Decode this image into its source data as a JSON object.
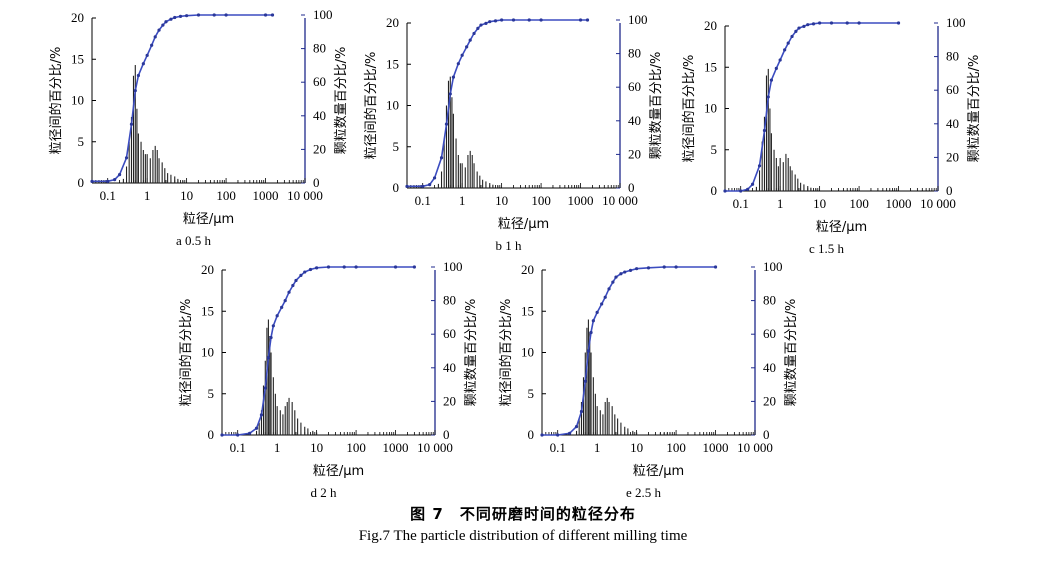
{
  "figure": {
    "caption_cn": "图 7　不同研磨时间的粒径分布",
    "caption_en": "Fig.7 The particle distribution of different milling time"
  },
  "chart_data": [
    {
      "type": "bar",
      "panel_label": "a  0.5 h",
      "xlabel": "粒径/μm",
      "ylabel": "粒径间的百分比/%",
      "ylabel_right": "颗粒数量百分比/%",
      "x_scale": "log",
      "xlim": [
        0.04,
        10000
      ],
      "x_ticks": [
        "0.1",
        "1",
        "10",
        "100",
        "1000",
        "10 000"
      ],
      "ylim": [
        0,
        20
      ],
      "y_ticks": [
        "0",
        "5",
        "10",
        "15",
        "20"
      ],
      "y2lim": [
        0,
        100
      ],
      "y2_ticks": [
        "0",
        "20",
        "40",
        "60",
        "80",
        "100"
      ],
      "series": [
        {
          "type": "bar",
          "x": [
            0.25,
            0.3,
            0.35,
            0.4,
            0.45,
            0.5,
            0.55,
            0.6,
            0.7,
            0.8,
            0.9,
            1.0,
            1.2,
            1.4,
            1.6,
            1.8,
            2.0,
            2.4,
            2.8,
            3.3,
            4.0,
            5.0,
            6.0,
            8.0
          ],
          "values": [
            0.5,
            2.0,
            5.0,
            8.0,
            13.0,
            14.3,
            9.0,
            6.0,
            5.0,
            4.0,
            3.5,
            3.5,
            3.0,
            4.0,
            4.5,
            4.0,
            3.0,
            2.5,
            1.8,
            1.2,
            1.0,
            0.8,
            0.5,
            0.3
          ]
        },
        {
          "type": "line",
          "axis": "right",
          "x": [
            0.04,
            0.1,
            0.15,
            0.2,
            0.3,
            0.4,
            0.5,
            0.6,
            0.8,
            1.0,
            1.3,
            1.6,
            2.0,
            2.5,
            3.0,
            4.0,
            5.0,
            7.0,
            10.0,
            20.0,
            50.0,
            100.0,
            1000.0,
            1500.0
          ],
          "values": [
            1,
            1,
            2,
            5,
            15,
            35,
            55,
            64,
            71,
            76,
            82,
            87,
            91,
            94,
            96,
            97.5,
            98.5,
            99.2,
            99.6,
            100,
            100,
            100,
            100,
            100
          ]
        }
      ]
    },
    {
      "type": "bar",
      "panel_label": "b  1 h",
      "xlabel": "粒径/μm",
      "ylabel": "粒径间的百分比/%",
      "ylabel_right": "颗粒数量百分比/%",
      "x_scale": "log",
      "xlim": [
        0.04,
        10000
      ],
      "x_ticks": [
        "0.1",
        "1",
        "10",
        "100",
        "1000",
        "10 000"
      ],
      "ylim": [
        0,
        20
      ],
      "y_ticks": [
        "0",
        "5",
        "10",
        "15",
        "20"
      ],
      "y2lim": [
        0,
        100
      ],
      "y2_ticks": [
        "0",
        "20",
        "40",
        "60",
        "80",
        "100"
      ],
      "series": [
        {
          "type": "bar",
          "x": [
            0.25,
            0.3,
            0.35,
            0.4,
            0.45,
            0.5,
            0.55,
            0.6,
            0.7,
            0.8,
            0.9,
            1.0,
            1.2,
            1.4,
            1.6,
            1.8,
            2.0,
            2.4,
            2.8,
            3.3,
            4.0,
            5.0,
            6.0,
            8.0
          ],
          "values": [
            0.5,
            2.0,
            6.0,
            10.0,
            13.0,
            13.5,
            11.0,
            9.0,
            6.0,
            4.0,
            3.0,
            3.0,
            2.5,
            4.0,
            4.5,
            4.0,
            3.0,
            2.0,
            1.5,
            1.0,
            0.8,
            0.6,
            0.4,
            0.3
          ]
        },
        {
          "type": "line",
          "axis": "right",
          "x": [
            0.04,
            0.1,
            0.15,
            0.2,
            0.3,
            0.4,
            0.5,
            0.6,
            0.8,
            1.0,
            1.3,
            1.6,
            2.0,
            2.5,
            3.0,
            4.0,
            5.0,
            7.0,
            10.0,
            20.0,
            50.0,
            100.0,
            1000.0,
            1500.0
          ],
          "values": [
            1,
            1,
            2,
            6,
            18,
            38,
            56,
            66,
            74,
            79,
            84,
            88,
            92,
            95,
            97,
            98,
            99,
            99.5,
            100,
            100,
            100,
            100,
            100,
            100
          ]
        }
      ]
    },
    {
      "type": "bar",
      "panel_label": "c  1.5 h",
      "xlabel": "粒径/μm",
      "ylabel": "粒径间的百分比/%",
      "ylabel_right": "颗粒数量百分比/%",
      "x_scale": "log",
      "xlim": [
        0.04,
        10000
      ],
      "x_ticks": [
        "0.1",
        "1",
        "10",
        "100",
        "1000",
        "10 000"
      ],
      "ylim": [
        0,
        20
      ],
      "y_ticks": [
        "0",
        "5",
        "10",
        "15",
        "20"
      ],
      "y2lim": [
        0,
        100
      ],
      "y2_ticks": [
        "0",
        "20",
        "40",
        "60",
        "80",
        "100"
      ],
      "series": [
        {
          "type": "bar",
          "x": [
            0.25,
            0.3,
            0.35,
            0.4,
            0.45,
            0.5,
            0.55,
            0.6,
            0.7,
            0.8,
            0.9,
            1.0,
            1.2,
            1.4,
            1.6,
            1.8,
            2.0,
            2.4,
            2.8,
            3.3,
            4.0,
            5.0,
            6.0,
            8.0
          ],
          "values": [
            0.5,
            2.5,
            6.0,
            9.0,
            14.0,
            14.8,
            10.0,
            7.0,
            5.0,
            4.0,
            3.0,
            4.0,
            3.5,
            4.5,
            4.0,
            3.0,
            2.5,
            2.0,
            1.5,
            1.0,
            0.8,
            0.6,
            0.4,
            0.3
          ]
        },
        {
          "type": "line",
          "axis": "right",
          "x": [
            0.04,
            0.1,
            0.15,
            0.2,
            0.3,
            0.4,
            0.5,
            0.6,
            0.8,
            1.0,
            1.3,
            1.6,
            2.0,
            2.5,
            3.0,
            4.0,
            5.0,
            7.0,
            10.0,
            20.0,
            50.0,
            100.0,
            1000.0
          ],
          "values": [
            0,
            0,
            1,
            4,
            15,
            36,
            56,
            66,
            73,
            78,
            84,
            88,
            92,
            95,
            97,
            98,
            99,
            99.5,
            100,
            100,
            100,
            100,
            100
          ]
        }
      ]
    },
    {
      "type": "bar",
      "panel_label": "d  2 h",
      "xlabel": "粒径/μm",
      "ylabel": "粒径间的百分比/%",
      "ylabel_right": "颗粒数量百分比/%",
      "x_scale": "log",
      "xlim": [
        0.04,
        10000
      ],
      "x_ticks": [
        "0.1",
        "1",
        "10",
        "100",
        "1000",
        "10 000"
      ],
      "ylim": [
        0,
        20
      ],
      "y_ticks": [
        "0",
        "5",
        "10",
        "15",
        "20"
      ],
      "y2lim": [
        0,
        100
      ],
      "y2_ticks": [
        "0",
        "20",
        "40",
        "60",
        "80",
        "100"
      ],
      "series": [
        {
          "type": "bar",
          "x": [
            0.3,
            0.35,
            0.4,
            0.45,
            0.5,
            0.55,
            0.6,
            0.65,
            0.7,
            0.8,
            0.9,
            1.0,
            1.2,
            1.4,
            1.6,
            1.8,
            2.0,
            2.4,
            2.8,
            3.3,
            4.0,
            5.0,
            6.0,
            8.0,
            10.0
          ],
          "values": [
            0.5,
            1.5,
            3.0,
            6.0,
            9.0,
            13.0,
            14.0,
            12.0,
            10.0,
            7.0,
            5.0,
            3.5,
            3.0,
            2.5,
            3.5,
            4.0,
            4.5,
            4.0,
            3.0,
            2.0,
            1.5,
            1.0,
            0.8,
            0.5,
            0.3
          ]
        },
        {
          "type": "line",
          "axis": "right",
          "x": [
            0.04,
            0.1,
            0.2,
            0.3,
            0.4,
            0.5,
            0.6,
            0.7,
            0.8,
            1.0,
            1.3,
            1.6,
            2.0,
            2.5,
            3.0,
            4.0,
            5.0,
            7.0,
            10.0,
            20.0,
            50.0,
            100.0,
            1000.0,
            3000.0
          ],
          "values": [
            0,
            0,
            1,
            4,
            12,
            28,
            46,
            58,
            65,
            71,
            76,
            80,
            85,
            89,
            92,
            95,
            97,
            98.5,
            99.5,
            100,
            100,
            100,
            100,
            100
          ]
        }
      ]
    },
    {
      "type": "bar",
      "panel_label": "e  2.5 h",
      "xlabel": "粒径/μm",
      "ylabel": "粒径间的百分比/%",
      "ylabel_right": "颗粒数量百分比/%",
      "x_scale": "log",
      "xlim": [
        0.04,
        10000
      ],
      "x_ticks": [
        "0.1",
        "1",
        "10",
        "100",
        "1000",
        "10 000"
      ],
      "ylim": [
        0,
        20
      ],
      "y_ticks": [
        "0",
        "5",
        "10",
        "15",
        "20"
      ],
      "y2lim": [
        0,
        100
      ],
      "y2_ticks": [
        "0",
        "20",
        "40",
        "60",
        "80",
        "100"
      ],
      "series": [
        {
          "type": "bar",
          "x": [
            0.3,
            0.35,
            0.4,
            0.45,
            0.5,
            0.55,
            0.6,
            0.65,
            0.7,
            0.8,
            0.9,
            1.0,
            1.2,
            1.4,
            1.6,
            1.8,
            2.0,
            2.4,
            2.8,
            3.3,
            4.0,
            5.0,
            6.0,
            8.0,
            10.0,
            40.0,
            50.0,
            60.0,
            70.0
          ],
          "values": [
            0.5,
            2.0,
            4.0,
            7.0,
            10.0,
            13.0,
            14.0,
            12.5,
            10.0,
            7.0,
            5.0,
            3.5,
            3.0,
            2.5,
            4.0,
            4.5,
            4.0,
            3.5,
            2.5,
            2.0,
            1.5,
            1.0,
            0.8,
            0.5,
            0.3,
            0.3,
            0.3,
            0.3,
            0.3
          ]
        },
        {
          "type": "line",
          "axis": "right",
          "x": [
            0.04,
            0.1,
            0.2,
            0.3,
            0.4,
            0.5,
            0.6,
            0.7,
            0.8,
            1.0,
            1.3,
            1.6,
            2.0,
            2.5,
            3.0,
            4.0,
            5.0,
            7.0,
            10.0,
            20.0,
            50.0,
            100.0,
            1000.0
          ],
          "values": [
            0,
            0,
            1,
            5,
            14,
            32,
            50,
            61,
            68,
            73,
            78,
            82,
            87,
            91,
            94,
            96,
            97,
            98,
            99,
            99.5,
            100,
            100,
            100
          ]
        }
      ]
    }
  ]
}
